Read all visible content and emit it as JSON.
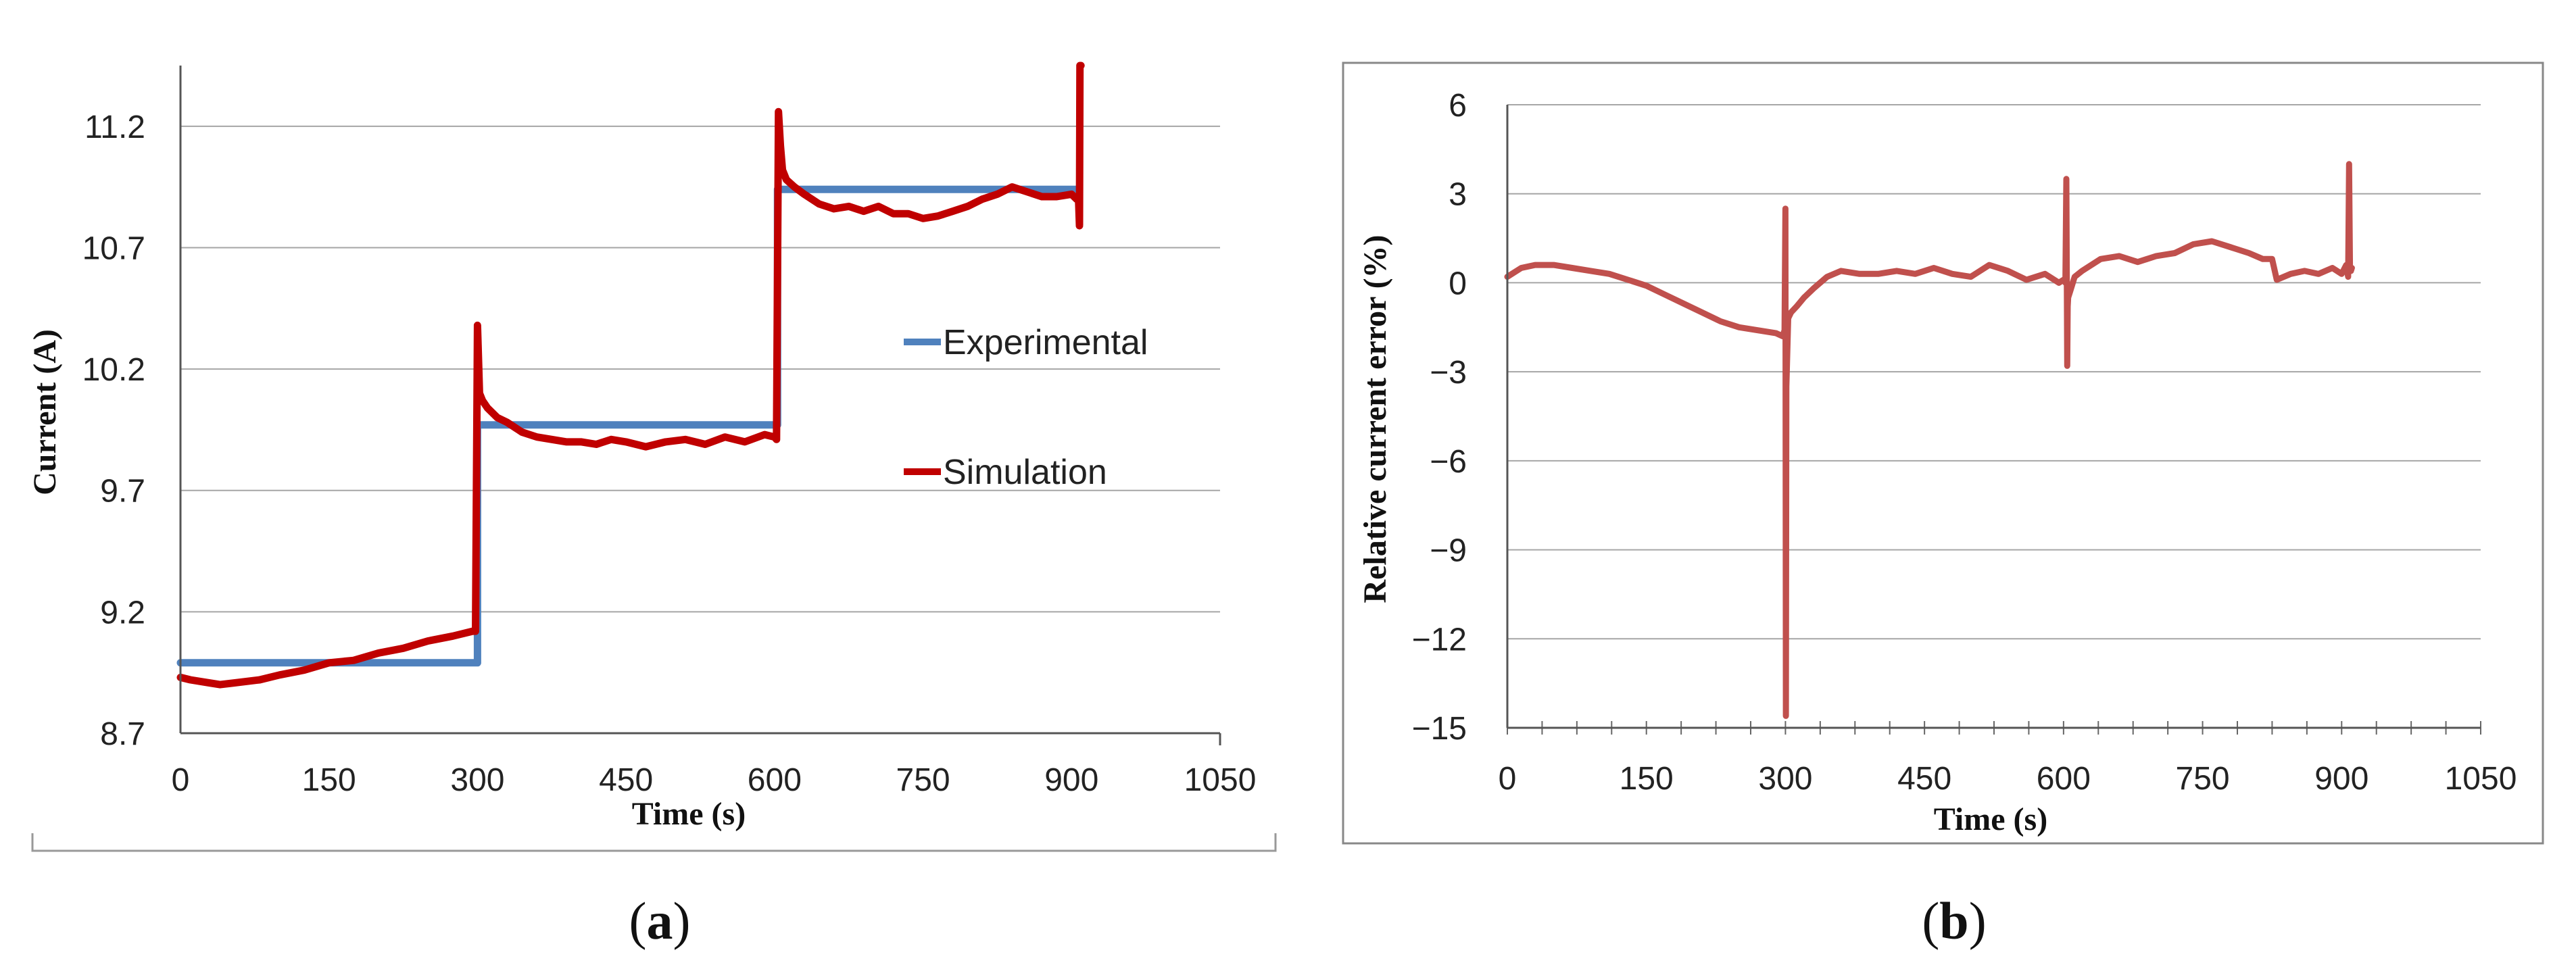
{
  "figure_labels": {
    "a": "a",
    "b": "b"
  },
  "colors": {
    "experimental": "#4F81BD",
    "simulation": "#C00000",
    "error": "#C0504D",
    "grid": "#A6A6A6",
    "frame": "#888888"
  },
  "chart_data": [
    {
      "panel": "a",
      "type": "line",
      "title": "",
      "xlabel": "Time (s)",
      "ylabel": "Current (A)",
      "xlim": [
        0,
        1050
      ],
      "ylim": [
        8.7,
        11.45
      ],
      "xticks": [
        0,
        150,
        300,
        450,
        600,
        750,
        900,
        1050
      ],
      "yticks": [
        8.7,
        9.2,
        9.7,
        10.2,
        10.7,
        11.2
      ],
      "xtick_labels": [
        "0",
        "150",
        "300",
        "450",
        "600",
        "750",
        "900",
        "1050"
      ],
      "ytick_labels": [
        "8.7",
        "9.2",
        "9.7",
        "10.2",
        "10.7",
        "11.2"
      ],
      "grid": "horizontal",
      "legend": "right",
      "series": [
        {
          "name": "Experimental",
          "color": "#4F81BD",
          "x": [
            0,
            299,
            299,
            300,
            300,
            602,
            602,
            603,
            603,
            908,
            908
          ],
          "y": [
            8.99,
            8.99,
            8.99,
            8.99,
            9.97,
            9.97,
            9.97,
            9.97,
            10.94,
            10.94,
            10.8
          ]
        },
        {
          "name": "Simulation",
          "color": "#C00000",
          "x": [
            0,
            10,
            25,
            40,
            60,
            80,
            100,
            125,
            150,
            175,
            200,
            225,
            250,
            275,
            295,
            298,
            300,
            302,
            305,
            310,
            320,
            330,
            345,
            360,
            375,
            390,
            405,
            420,
            435,
            450,
            470,
            490,
            510,
            530,
            550,
            570,
            590,
            600,
            602,
            604,
            606,
            608,
            612,
            620,
            630,
            645,
            660,
            675,
            690,
            705,
            720,
            735,
            750,
            765,
            780,
            795,
            810,
            825,
            840,
            855,
            870,
            885,
            900,
            905,
            907,
            908,
            908.5,
            909,
            909.5
          ],
          "y": [
            8.93,
            8.92,
            8.91,
            8.9,
            8.91,
            8.92,
            8.94,
            8.96,
            8.99,
            9.0,
            9.03,
            9.05,
            9.08,
            9.1,
            9.12,
            9.12,
            10.38,
            10.1,
            10.07,
            10.04,
            10.0,
            9.98,
            9.94,
            9.92,
            9.91,
            9.9,
            9.9,
            9.89,
            9.91,
            9.9,
            9.88,
            9.9,
            9.91,
            9.89,
            9.92,
            9.9,
            9.93,
            9.92,
            9.91,
            11.26,
            11.12,
            11.02,
            10.98,
            10.95,
            10.92,
            10.88,
            10.86,
            10.87,
            10.85,
            10.87,
            10.84,
            10.84,
            10.82,
            10.83,
            10.85,
            10.87,
            10.9,
            10.92,
            10.95,
            10.93,
            10.91,
            10.91,
            10.92,
            10.9,
            10.91,
            10.79,
            11.45,
            11.45,
            11.45
          ]
        }
      ]
    },
    {
      "panel": "b",
      "type": "line",
      "title": "",
      "xlabel": "Time (s)",
      "ylabel": "Relative current error  (%)",
      "xlim": [
        0,
        1050
      ],
      "ylim": [
        -15,
        6
      ],
      "xticks": [
        0,
        150,
        300,
        450,
        600,
        750,
        900,
        1050
      ],
      "yticks": [
        -15,
        -12,
        -9,
        -6,
        -3,
        0,
        3,
        6
      ],
      "xtick_labels": [
        "0",
        "150",
        "300",
        "450",
        "600",
        "750",
        "900",
        "1050"
      ],
      "ytick_labels": [
        "−15",
        "−12",
        "−9",
        "−6",
        "−3",
        "0",
        "3",
        "6"
      ],
      "grid": "horizontal",
      "legend": "none",
      "series": [
        {
          "name": "Relative current error",
          "color": "#C0504D",
          "x": [
            0,
            15,
            30,
            50,
            70,
            90,
            110,
            130,
            150,
            170,
            190,
            210,
            230,
            250,
            270,
            290,
            297,
            299,
            300,
            300.5,
            301,
            303,
            306,
            312,
            320,
            330,
            345,
            360,
            380,
            400,
            420,
            440,
            460,
            480,
            500,
            520,
            540,
            560,
            580,
            595,
            600,
            602,
            603,
            604,
            604.5,
            605,
            607,
            612,
            620,
            640,
            660,
            680,
            700,
            720,
            740,
            760,
            780,
            800,
            815,
            825,
            830,
            845,
            860,
            875,
            890,
            900,
            905,
            907,
            908,
            909,
            910,
            911
          ],
          "y": [
            0.2,
            0.5,
            0.6,
            0.6,
            0.5,
            0.4,
            0.3,
            0.1,
            -0.1,
            -0.4,
            -0.7,
            -1.0,
            -1.3,
            -1.5,
            -1.6,
            -1.7,
            -1.8,
            -1.6,
            2.5,
            -14.6,
            -3.5,
            -1.2,
            -1.0,
            -0.8,
            -0.5,
            -0.2,
            0.2,
            0.4,
            0.3,
            0.3,
            0.4,
            0.3,
            0.5,
            0.3,
            0.2,
            0.6,
            0.4,
            0.1,
            0.3,
            0.0,
            0.1,
            0.0,
            3.5,
            -2.8,
            -0.8,
            -0.5,
            -0.3,
            0.2,
            0.4,
            0.8,
            0.9,
            0.7,
            0.9,
            1.0,
            1.3,
            1.4,
            1.2,
            1.0,
            0.8,
            0.8,
            0.1,
            0.3,
            0.4,
            0.3,
            0.5,
            0.3,
            0.6,
            0.2,
            4.0,
            0.5,
            0.4,
            0.5
          ]
        }
      ]
    }
  ]
}
